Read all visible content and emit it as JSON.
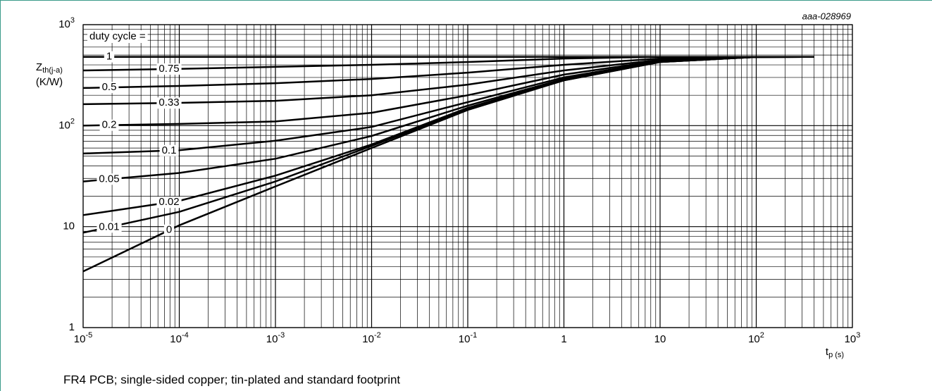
{
  "chart_data": {
    "type": "line",
    "figure_code": "aaa-028969",
    "y_label": "Zth(j-a)",
    "y_unit": "(K/W)",
    "x_label": "tp (s)",
    "legend_title": "duty cycle =",
    "caption": "FR4 PCB; single-sided copper; tin-plated and standard footprint",
    "log_x": true,
    "log_y": true,
    "grid": true,
    "minor_grid": true,
    "xlim": [
      1e-05,
      1000
    ],
    "ylim": [
      1,
      1000
    ],
    "xticks": [
      {
        "value": 1e-05,
        "label": "10-5"
      },
      {
        "value": 0.0001,
        "label": "10-4"
      },
      {
        "value": 0.001,
        "label": "10-3"
      },
      {
        "value": 0.01,
        "label": "10-2"
      },
      {
        "value": 0.1,
        "label": "10-1"
      },
      1,
      10,
      {
        "value": 100,
        "label": "102"
      },
      {
        "value": 1000,
        "label": "103"
      }
    ],
    "yticks": [
      1,
      10,
      {
        "value": 100,
        "label": "102"
      },
      {
        "value": 1000,
        "label": "103"
      }
    ],
    "x": [
      1e-05,
      0.0001,
      0.001,
      0.01,
      0.1,
      1,
      10,
      100,
      400
    ],
    "series": [
      {
        "name": "1",
        "color": "#000000",
        "values": [
          480,
          480,
          480,
          480,
          480,
          480,
          480,
          480,
          480
        ]
      },
      {
        "name": "0.75",
        "color": "#000000",
        "values": [
          352,
          365,
          382,
          400,
          427,
          462,
          480,
          480,
          480
        ]
      },
      {
        "name": "0.5",
        "color": "#000000",
        "values": [
          236,
          247,
          263,
          290,
          335,
          400,
          462,
          478,
          480
        ]
      },
      {
        "name": "0.33",
        "color": "#000000",
        "values": [
          163,
          168,
          176,
          200,
          255,
          352,
          448,
          478,
          480
        ]
      },
      {
        "name": "0.2",
        "color": "#000000",
        "values": [
          100,
          104,
          110,
          134,
          200,
          320,
          440,
          478,
          480
        ]
      },
      {
        "name": "0.1",
        "color": "#000000",
        "values": [
          53,
          57,
          71,
          97,
          171,
          300,
          434,
          478,
          480
        ]
      },
      {
        "name": "0.05",
        "color": "#000000",
        "values": [
          28,
          34,
          47,
          79,
          158,
          290,
          430,
          478,
          480
        ]
      },
      {
        "name": "0.02",
        "color": "#000000",
        "values": [
          13,
          18,
          32,
          65,
          150,
          285,
          427,
          478,
          480
        ]
      },
      {
        "name": "0.01",
        "color": "#000000",
        "values": [
          8.7,
          14,
          28,
          63,
          146,
          281,
          427,
          478,
          480
        ]
      },
      {
        "name": "0",
        "color": "#000000",
        "values": [
          3.6,
          10.3,
          25,
          60,
          143,
          281,
          427,
          478,
          480
        ]
      }
    ]
  }
}
